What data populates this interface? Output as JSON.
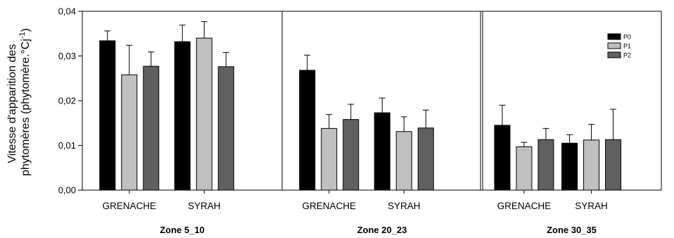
{
  "chart_data": {
    "type": "bar",
    "ylabel_line1": "Vitesse d'apparition des",
    "ylabel_line2": "phytomères (phytomère.°Cj",
    "ylabel_sup": "-1",
    "ylabel_close": ")",
    "ylim": [
      0,
      0.04
    ],
    "yticks": [
      "0,00",
      "0,01",
      "0,02",
      "0,03",
      "0,04"
    ],
    "legend_position": "top-right",
    "series": [
      {
        "name": "P0",
        "color": "#000000"
      },
      {
        "name": "P1",
        "color": "#c0c0c0"
      },
      {
        "name": "P2",
        "color": "#606060"
      }
    ],
    "panels": [
      {
        "zone": "Zone 5_10",
        "groups": [
          {
            "category": "GRENACHE",
            "values": [
              0.0334,
              0.0258,
              0.0277
            ],
            "errors": [
              0.0022,
              0.0066,
              0.0032
            ]
          },
          {
            "category": "SYRAH",
            "values": [
              0.0332,
              0.034,
              0.0276
            ],
            "errors": [
              0.0037,
              0.0037,
              0.0032
            ]
          }
        ]
      },
      {
        "zone": "Zone 20_23",
        "groups": [
          {
            "category": "GRENACHE",
            "values": [
              0.0268,
              0.0138,
              0.0158
            ],
            "errors": [
              0.0034,
              0.0031,
              0.0034
            ]
          },
          {
            "category": "SYRAH",
            "values": [
              0.0173,
              0.0131,
              0.0139
            ],
            "errors": [
              0.0033,
              0.0033,
              0.004
            ]
          }
        ]
      },
      {
        "zone": "Zone 30_35",
        "groups": [
          {
            "category": "GRENACHE",
            "values": [
              0.0145,
              0.0097,
              0.0113
            ],
            "errors": [
              0.0045,
              0.001,
              0.0025
            ]
          },
          {
            "category": "SYRAH",
            "values": [
              0.0105,
              0.0112,
              0.0113
            ],
            "errors": [
              0.0019,
              0.0035,
              0.0068
            ]
          }
        ]
      }
    ]
  }
}
